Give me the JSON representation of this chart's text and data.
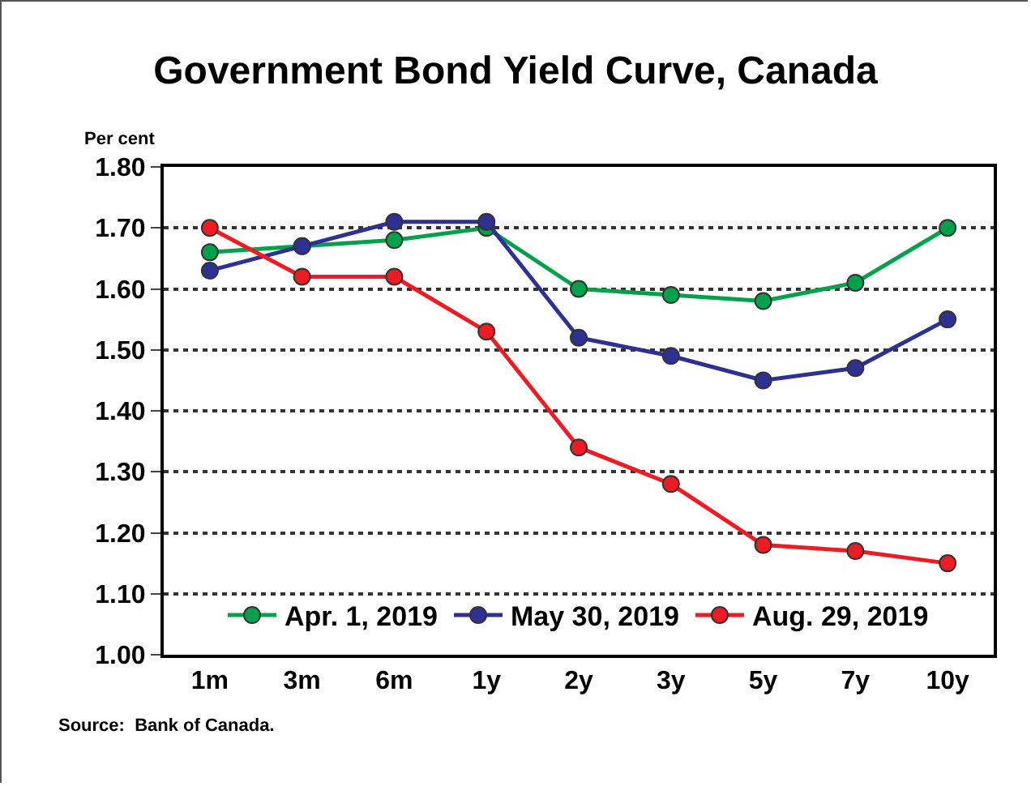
{
  "chart_data": {
    "type": "line",
    "title": "Government Bond Yield Curve, Canada",
    "ylabel": "Per cent",
    "categories": [
      "1m",
      "3m",
      "6m",
      "1y",
      "2y",
      "3y",
      "5y",
      "7y",
      "10y"
    ],
    "series": [
      {
        "name": "Apr. 1, 2019",
        "color": "#00a14b",
        "values": [
          1.66,
          1.67,
          1.68,
          1.7,
          1.6,
          1.59,
          1.58,
          1.61,
          1.7
        ]
      },
      {
        "name": "May 30, 2019",
        "color": "#2e3192",
        "values": [
          1.63,
          1.67,
          1.71,
          1.71,
          1.52,
          1.49,
          1.45,
          1.47,
          1.55
        ]
      },
      {
        "name": "Aug. 29, 2019",
        "color": "#ed1c24",
        "values": [
          1.7,
          1.62,
          1.62,
          1.53,
          1.34,
          1.28,
          1.18,
          1.17,
          1.15
        ]
      }
    ],
    "ylim": [
      1.0,
      1.8
    ],
    "yticks": [
      {
        "value": 1.0,
        "label": "1.00"
      },
      {
        "value": 1.1,
        "label": "1.10"
      },
      {
        "value": 1.2,
        "label": "1.20"
      },
      {
        "value": 1.3,
        "label": "1.30"
      },
      {
        "value": 1.4,
        "label": "1.40"
      },
      {
        "value": 1.5,
        "label": "1.50"
      },
      {
        "value": 1.6,
        "label": "1.60"
      },
      {
        "value": 1.7,
        "label": "1.70"
      },
      {
        "value": 1.8,
        "label": "1.80"
      }
    ],
    "grid": "y",
    "legend": "bottom",
    "marker": "circle",
    "line_style": "solid",
    "annotations": [
      "Source:  Bank of Canada."
    ]
  }
}
